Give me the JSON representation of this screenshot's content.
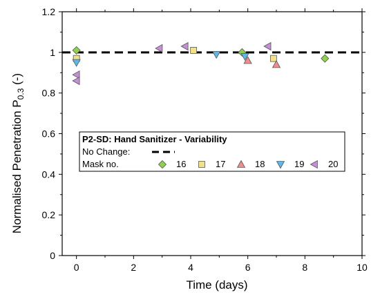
{
  "colors": {
    "16": "#8fd14f",
    "17": "#f2e08a",
    "18": "#f28c8c",
    "19": "#5fb8e8",
    "20": "#c58fd6",
    "reference_line": "#000000"
  },
  "chart_data": {
    "type": "scatter",
    "xlabel": "Time (days)",
    "ylabel_main": "Normalised Penetration P",
    "ylabel_sub": "0.3",
    "ylabel_suffix": " (-)",
    "xlim": [
      -0.5,
      10
    ],
    "ylim": [
      0,
      1.2
    ],
    "xticks": [
      0,
      2,
      4,
      6,
      8,
      10
    ],
    "yticks": [
      0,
      0.2,
      0.4,
      0.6,
      0.8,
      1.0,
      1.2
    ],
    "ytick_labels": [
      "0",
      "0.2",
      "0.4",
      "0.6",
      "0.8",
      "1",
      "1.2"
    ],
    "grid": false,
    "legend_position": "lower-left",
    "reference_line": {
      "label": "No Change:",
      "y": 1,
      "style": "dashed"
    },
    "legend": {
      "title": "P2-SD:  Hand Sanitizer - Variability",
      "mask_label": "Mask no."
    },
    "series": [
      {
        "name": "16",
        "marker": "diamond",
        "points": [
          [
            0,
            1.01
          ],
          [
            5.8,
            1.0
          ],
          [
            8.7,
            0.97
          ]
        ]
      },
      {
        "name": "17",
        "marker": "square",
        "points": [
          [
            0,
            0.97
          ],
          [
            4.1,
            1.01
          ],
          [
            6.9,
            0.97
          ]
        ]
      },
      {
        "name": "18",
        "marker": "triangle-up",
        "points": [
          [
            6.0,
            0.96
          ],
          [
            7.0,
            0.94
          ]
        ]
      },
      {
        "name": "19",
        "marker": "triangle-down",
        "points": [
          [
            0,
            0.95
          ],
          [
            4.9,
            0.99
          ],
          [
            5.9,
            0.98
          ]
        ]
      },
      {
        "name": "20",
        "marker": "triangle-left",
        "points": [
          [
            0,
            0.89
          ],
          [
            0,
            0.86
          ],
          [
            2.9,
            1.02
          ],
          [
            3.8,
            1.03
          ],
          [
            6.7,
            1.03
          ]
        ]
      }
    ]
  }
}
